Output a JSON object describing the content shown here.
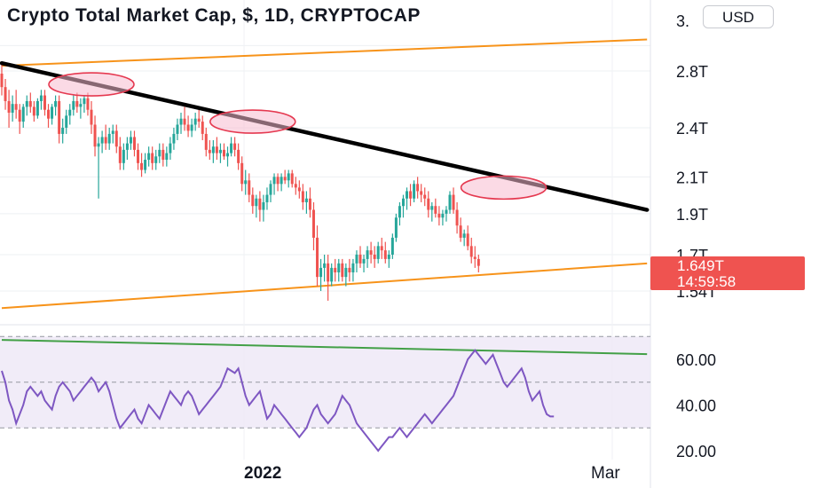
{
  "header": {
    "title": "Crypto Total Market Cap, $, 1D, CRYPTOCAP",
    "currency_button": "USD"
  },
  "price_tag": {
    "price": "1.649T",
    "countdown": "14:59:58"
  },
  "colors": {
    "up": "#26a69a",
    "down": "#ef5350",
    "trendline": "#000000",
    "channel": "#f7931a",
    "rsi_line": "#7e57c2",
    "rsi_band": "#ede7f6",
    "rsi_trend": "#43a047",
    "highlight": "#f8bbd0",
    "highlight_border": "#e53950"
  },
  "chart_data": [
    {
      "type": "candlestick",
      "title": "Crypto Total Market Cap, $, 1D, CRYPTOCAP",
      "y_axis_labels": [
        "3.",
        "2.8T",
        "2.4T",
        "2.1T",
        "1.9T",
        "1.7T",
        "1.54T"
      ],
      "y_axis_ticks": [
        3.0,
        2.8,
        2.4,
        2.1,
        1.9,
        1.7,
        1.54
      ],
      "scale": "log",
      "x_axis_labels": [
        "2022",
        "Mar"
      ],
      "last_value": 1.649,
      "candles": [
        {
          "o": 2.78,
          "h": 2.86,
          "l": 2.62,
          "c": 2.68
        },
        {
          "o": 2.68,
          "h": 2.74,
          "l": 2.52,
          "c": 2.58
        },
        {
          "o": 2.58,
          "h": 2.66,
          "l": 2.4,
          "c": 2.5
        },
        {
          "o": 2.5,
          "h": 2.62,
          "l": 2.44,
          "c": 2.56
        },
        {
          "o": 2.56,
          "h": 2.66,
          "l": 2.46,
          "c": 2.52
        },
        {
          "o": 2.52,
          "h": 2.56,
          "l": 2.36,
          "c": 2.44
        },
        {
          "o": 2.44,
          "h": 2.56,
          "l": 2.4,
          "c": 2.54
        },
        {
          "o": 2.54,
          "h": 2.62,
          "l": 2.48,
          "c": 2.58
        },
        {
          "o": 2.58,
          "h": 2.64,
          "l": 2.5,
          "c": 2.54
        },
        {
          "o": 2.54,
          "h": 2.58,
          "l": 2.44,
          "c": 2.48
        },
        {
          "o": 2.48,
          "h": 2.6,
          "l": 2.46,
          "c": 2.58
        },
        {
          "o": 2.58,
          "h": 2.66,
          "l": 2.52,
          "c": 2.62
        },
        {
          "o": 2.62,
          "h": 2.66,
          "l": 2.48,
          "c": 2.52
        },
        {
          "o": 2.52,
          "h": 2.56,
          "l": 2.4,
          "c": 2.46
        },
        {
          "o": 2.46,
          "h": 2.56,
          "l": 2.42,
          "c": 2.54
        },
        {
          "o": 2.54,
          "h": 2.62,
          "l": 2.48,
          "c": 2.58
        },
        {
          "o": 2.58,
          "h": 2.62,
          "l": 2.3,
          "c": 2.36
        },
        {
          "o": 2.36,
          "h": 2.46,
          "l": 2.3,
          "c": 2.4
        },
        {
          "o": 2.4,
          "h": 2.52,
          "l": 2.36,
          "c": 2.48
        },
        {
          "o": 2.48,
          "h": 2.56,
          "l": 2.42,
          "c": 2.52
        },
        {
          "o": 2.52,
          "h": 2.62,
          "l": 2.48,
          "c": 2.58
        },
        {
          "o": 2.58,
          "h": 2.64,
          "l": 2.5,
          "c": 2.54
        },
        {
          "o": 2.54,
          "h": 2.6,
          "l": 2.46,
          "c": 2.56
        },
        {
          "o": 2.56,
          "h": 2.62,
          "l": 2.5,
          "c": 2.6
        },
        {
          "o": 2.6,
          "h": 2.64,
          "l": 2.48,
          "c": 2.52
        },
        {
          "o": 2.52,
          "h": 2.58,
          "l": 2.36,
          "c": 2.42
        },
        {
          "o": 2.42,
          "h": 2.48,
          "l": 2.22,
          "c": 2.28
        },
        {
          "o": 2.28,
          "h": 2.34,
          "l": 1.98,
          "c": 2.3
        },
        {
          "o": 2.3,
          "h": 2.38,
          "l": 2.24,
          "c": 2.34
        },
        {
          "o": 2.34,
          "h": 2.42,
          "l": 2.26,
          "c": 2.3
        },
        {
          "o": 2.3,
          "h": 2.4,
          "l": 2.26,
          "c": 2.36
        },
        {
          "o": 2.36,
          "h": 2.42,
          "l": 2.3,
          "c": 2.38
        },
        {
          "o": 2.38,
          "h": 2.42,
          "l": 2.24,
          "c": 2.28
        },
        {
          "o": 2.28,
          "h": 2.34,
          "l": 2.14,
          "c": 2.18
        },
        {
          "o": 2.18,
          "h": 2.3,
          "l": 2.14,
          "c": 2.26
        },
        {
          "o": 2.26,
          "h": 2.34,
          "l": 2.2,
          "c": 2.3
        },
        {
          "o": 2.3,
          "h": 2.38,
          "l": 2.26,
          "c": 2.34
        },
        {
          "o": 2.34,
          "h": 2.38,
          "l": 2.22,
          "c": 2.26
        },
        {
          "o": 2.26,
          "h": 2.3,
          "l": 2.14,
          "c": 2.18
        },
        {
          "o": 2.18,
          "h": 2.24,
          "l": 2.1,
          "c": 2.14
        },
        {
          "o": 2.14,
          "h": 2.24,
          "l": 2.12,
          "c": 2.2
        },
        {
          "o": 2.2,
          "h": 2.28,
          "l": 2.16,
          "c": 2.24
        },
        {
          "o": 2.24,
          "h": 2.28,
          "l": 2.14,
          "c": 2.18
        },
        {
          "o": 2.18,
          "h": 2.26,
          "l": 2.14,
          "c": 2.22
        },
        {
          "o": 2.22,
          "h": 2.3,
          "l": 2.18,
          "c": 2.26
        },
        {
          "o": 2.26,
          "h": 2.3,
          "l": 2.16,
          "c": 2.2
        },
        {
          "o": 2.2,
          "h": 2.28,
          "l": 2.16,
          "c": 2.24
        },
        {
          "o": 2.24,
          "h": 2.34,
          "l": 2.2,
          "c": 2.3
        },
        {
          "o": 2.3,
          "h": 2.4,
          "l": 2.26,
          "c": 2.36
        },
        {
          "o": 2.36,
          "h": 2.46,
          "l": 2.32,
          "c": 2.42
        },
        {
          "o": 2.42,
          "h": 2.5,
          "l": 2.36,
          "c": 2.46
        },
        {
          "o": 2.46,
          "h": 2.54,
          "l": 2.38,
          "c": 2.42
        },
        {
          "o": 2.42,
          "h": 2.48,
          "l": 2.34,
          "c": 2.38
        },
        {
          "o": 2.38,
          "h": 2.46,
          "l": 2.34,
          "c": 2.42
        },
        {
          "o": 2.42,
          "h": 2.5,
          "l": 2.38,
          "c": 2.46
        },
        {
          "o": 2.46,
          "h": 2.54,
          "l": 2.4,
          "c": 2.44
        },
        {
          "o": 2.44,
          "h": 2.48,
          "l": 2.32,
          "c": 2.36
        },
        {
          "o": 2.36,
          "h": 2.4,
          "l": 2.22,
          "c": 2.26
        },
        {
          "o": 2.26,
          "h": 2.32,
          "l": 2.2,
          "c": 2.24
        },
        {
          "o": 2.24,
          "h": 2.32,
          "l": 2.18,
          "c": 2.28
        },
        {
          "o": 2.28,
          "h": 2.34,
          "l": 2.2,
          "c": 2.24
        },
        {
          "o": 2.24,
          "h": 2.3,
          "l": 2.18,
          "c": 2.26
        },
        {
          "o": 2.26,
          "h": 2.3,
          "l": 2.2,
          "c": 2.22
        },
        {
          "o": 2.22,
          "h": 2.28,
          "l": 2.16,
          "c": 2.24
        },
        {
          "o": 2.24,
          "h": 2.34,
          "l": 2.22,
          "c": 2.3
        },
        {
          "o": 2.3,
          "h": 2.34,
          "l": 2.22,
          "c": 2.26
        },
        {
          "o": 2.26,
          "h": 2.3,
          "l": 2.14,
          "c": 2.18
        },
        {
          "o": 2.18,
          "h": 2.22,
          "l": 2.02,
          "c": 2.06
        },
        {
          "o": 2.06,
          "h": 2.14,
          "l": 2.0,
          "c": 2.08
        },
        {
          "o": 2.08,
          "h": 2.12,
          "l": 1.96,
          "c": 2.0
        },
        {
          "o": 2.0,
          "h": 2.04,
          "l": 1.9,
          "c": 1.94
        },
        {
          "o": 1.94,
          "h": 2.0,
          "l": 1.88,
          "c": 1.98
        },
        {
          "o": 1.98,
          "h": 2.02,
          "l": 1.86,
          "c": 1.92
        },
        {
          "o": 1.92,
          "h": 2.0,
          "l": 1.86,
          "c": 1.96
        },
        {
          "o": 1.96,
          "h": 2.04,
          "l": 1.92,
          "c": 2.0
        },
        {
          "o": 2.0,
          "h": 2.08,
          "l": 1.96,
          "c": 2.06
        },
        {
          "o": 2.06,
          "h": 2.12,
          "l": 2.0,
          "c": 2.1
        },
        {
          "o": 2.1,
          "h": 2.12,
          "l": 2.02,
          "c": 2.06
        },
        {
          "o": 2.06,
          "h": 2.12,
          "l": 2.02,
          "c": 2.1
        },
        {
          "o": 2.1,
          "h": 2.14,
          "l": 2.06,
          "c": 2.08
        },
        {
          "o": 2.08,
          "h": 2.14,
          "l": 2.04,
          "c": 2.12
        },
        {
          "o": 2.12,
          "h": 2.14,
          "l": 2.04,
          "c": 2.06
        },
        {
          "o": 2.06,
          "h": 2.1,
          "l": 2.0,
          "c": 2.04
        },
        {
          "o": 2.04,
          "h": 2.08,
          "l": 1.98,
          "c": 2.02
        },
        {
          "o": 2.02,
          "h": 2.06,
          "l": 1.92,
          "c": 1.96
        },
        {
          "o": 1.96,
          "h": 2.02,
          "l": 1.9,
          "c": 1.98
        },
        {
          "o": 1.98,
          "h": 2.04,
          "l": 1.88,
          "c": 1.92
        },
        {
          "o": 1.92,
          "h": 1.96,
          "l": 1.72,
          "c": 1.78
        },
        {
          "o": 1.78,
          "h": 1.84,
          "l": 1.56,
          "c": 1.6
        },
        {
          "o": 1.6,
          "h": 1.68,
          "l": 1.54,
          "c": 1.64
        },
        {
          "o": 1.64,
          "h": 1.7,
          "l": 1.58,
          "c": 1.66
        },
        {
          "o": 1.66,
          "h": 1.7,
          "l": 1.5,
          "c": 1.58
        },
        {
          "o": 1.58,
          "h": 1.66,
          "l": 1.56,
          "c": 1.64
        },
        {
          "o": 1.64,
          "h": 1.68,
          "l": 1.58,
          "c": 1.62
        },
        {
          "o": 1.62,
          "h": 1.68,
          "l": 1.58,
          "c": 1.66
        },
        {
          "o": 1.66,
          "h": 1.68,
          "l": 1.58,
          "c": 1.6
        },
        {
          "o": 1.6,
          "h": 1.66,
          "l": 1.56,
          "c": 1.64
        },
        {
          "o": 1.64,
          "h": 1.68,
          "l": 1.58,
          "c": 1.62
        },
        {
          "o": 1.62,
          "h": 1.68,
          "l": 1.58,
          "c": 1.66
        },
        {
          "o": 1.66,
          "h": 1.72,
          "l": 1.62,
          "c": 1.7
        },
        {
          "o": 1.7,
          "h": 1.74,
          "l": 1.64,
          "c": 1.66
        },
        {
          "o": 1.66,
          "h": 1.7,
          "l": 1.62,
          "c": 1.68
        },
        {
          "o": 1.68,
          "h": 1.74,
          "l": 1.64,
          "c": 1.72
        },
        {
          "o": 1.72,
          "h": 1.76,
          "l": 1.66,
          "c": 1.7
        },
        {
          "o": 1.7,
          "h": 1.74,
          "l": 1.64,
          "c": 1.68
        },
        {
          "o": 1.68,
          "h": 1.76,
          "l": 1.66,
          "c": 1.74
        },
        {
          "o": 1.74,
          "h": 1.78,
          "l": 1.68,
          "c": 1.72
        },
        {
          "o": 1.72,
          "h": 1.76,
          "l": 1.66,
          "c": 1.68
        },
        {
          "o": 1.68,
          "h": 1.72,
          "l": 1.64,
          "c": 1.7
        },
        {
          "o": 1.7,
          "h": 1.8,
          "l": 1.68,
          "c": 1.78
        },
        {
          "o": 1.78,
          "h": 1.9,
          "l": 1.76,
          "c": 1.88
        },
        {
          "o": 1.88,
          "h": 1.96,
          "l": 1.84,
          "c": 1.94
        },
        {
          "o": 1.94,
          "h": 2.0,
          "l": 1.88,
          "c": 1.98
        },
        {
          "o": 1.98,
          "h": 2.04,
          "l": 1.92,
          "c": 2.02
        },
        {
          "o": 2.02,
          "h": 2.06,
          "l": 1.94,
          "c": 1.98
        },
        {
          "o": 1.98,
          "h": 2.08,
          "l": 1.96,
          "c": 2.06
        },
        {
          "o": 2.06,
          "h": 2.1,
          "l": 1.98,
          "c": 2.02
        },
        {
          "o": 2.02,
          "h": 2.06,
          "l": 1.96,
          "c": 2.0
        },
        {
          "o": 2.0,
          "h": 2.04,
          "l": 1.94,
          "c": 1.98
        },
        {
          "o": 1.98,
          "h": 2.02,
          "l": 1.88,
          "c": 1.92
        },
        {
          "o": 1.92,
          "h": 1.96,
          "l": 1.86,
          "c": 1.94
        },
        {
          "o": 1.94,
          "h": 1.98,
          "l": 1.88,
          "c": 1.9
        },
        {
          "o": 1.9,
          "h": 1.94,
          "l": 1.84,
          "c": 1.88
        },
        {
          "o": 1.88,
          "h": 1.92,
          "l": 1.84,
          "c": 1.9
        },
        {
          "o": 1.9,
          "h": 1.94,
          "l": 1.86,
          "c": 1.92
        },
        {
          "o": 1.92,
          "h": 2.02,
          "l": 1.9,
          "c": 2.0
        },
        {
          "o": 2.0,
          "h": 2.04,
          "l": 1.9,
          "c": 1.92
        },
        {
          "o": 1.92,
          "h": 1.96,
          "l": 1.8,
          "c": 1.84
        },
        {
          "o": 1.84,
          "h": 1.88,
          "l": 1.76,
          "c": 1.78
        },
        {
          "o": 1.78,
          "h": 1.82,
          "l": 1.74,
          "c": 1.8
        },
        {
          "o": 1.8,
          "h": 1.84,
          "l": 1.72,
          "c": 1.74
        },
        {
          "o": 1.74,
          "h": 1.78,
          "l": 1.66,
          "c": 1.69
        },
        {
          "o": 1.69,
          "h": 1.74,
          "l": 1.64,
          "c": 1.68
        },
        {
          "o": 1.68,
          "h": 1.7,
          "l": 1.62,
          "c": 1.649
        }
      ],
      "annotations": [
        {
          "type": "trendline",
          "role": "resistance",
          "color": "#000000",
          "from": {
            "i": 0,
            "v": 2.86
          },
          "to": {
            "i": 180,
            "v": 1.92
          }
        },
        {
          "type": "trendline",
          "role": "channel-top",
          "color": "#f7931a",
          "from": {
            "i": 0,
            "v": 2.84
          },
          "to": {
            "i": 180,
            "v": 3.05
          }
        },
        {
          "type": "trendline",
          "role": "channel-bottom",
          "color": "#f7931a",
          "from": {
            "i": 0,
            "v": 1.47
          },
          "to": {
            "i": 180,
            "v": 1.66
          }
        },
        {
          "type": "highlight-ellipse",
          "i": 25,
          "v": 2.7
        },
        {
          "type": "highlight-ellipse",
          "i": 70,
          "v": 2.44
        },
        {
          "type": "highlight-ellipse",
          "i": 140,
          "v": 2.04
        }
      ]
    },
    {
      "type": "line",
      "name": "",
      "y_axis_labels": [
        "60.00",
        "40.00",
        "20.00"
      ],
      "y_axis_ticks": [
        60,
        40,
        20
      ],
      "ylim": [
        17,
        72
      ],
      "band": [
        30,
        70
      ],
      "midline": 50,
      "values": [
        55,
        50,
        42,
        38,
        32,
        36,
        40,
        46,
        48,
        46,
        44,
        46,
        42,
        40,
        38,
        44,
        48,
        50,
        48,
        46,
        42,
        44,
        46,
        48,
        50,
        52,
        50,
        46,
        48,
        50,
        46,
        40,
        34,
        30,
        32,
        34,
        36,
        38,
        34,
        32,
        36,
        40,
        38,
        36,
        34,
        38,
        42,
        46,
        44,
        42,
        40,
        44,
        46,
        44,
        40,
        36,
        38,
        40,
        42,
        44,
        46,
        48,
        52,
        56,
        55,
        54,
        56,
        50,
        44,
        40,
        42,
        44,
        46,
        40,
        34,
        36,
        40,
        38,
        36,
        34,
        32,
        30,
        28,
        26,
        28,
        30,
        34,
        38,
        40,
        36,
        34,
        32,
        34,
        36,
        40,
        44,
        42,
        40,
        36,
        32,
        30,
        28,
        26,
        24,
        22,
        20,
        22,
        24,
        26,
        26,
        28,
        30,
        28,
        26,
        28,
        30,
        32,
        34,
        36,
        34,
        32,
        34,
        36,
        38,
        40,
        42,
        44,
        48,
        52,
        56,
        60,
        62,
        64,
        62,
        60,
        58,
        60,
        62,
        58,
        54,
        50,
        48,
        50,
        52,
        54,
        56,
        52,
        46,
        42,
        44,
        46,
        40,
        36,
        35,
        35
      ],
      "trendline": {
        "from": {
          "i": 0,
          "v": 68.5
        },
        "to": {
          "i": 180,
          "v": 62.3
        }
      }
    }
  ]
}
